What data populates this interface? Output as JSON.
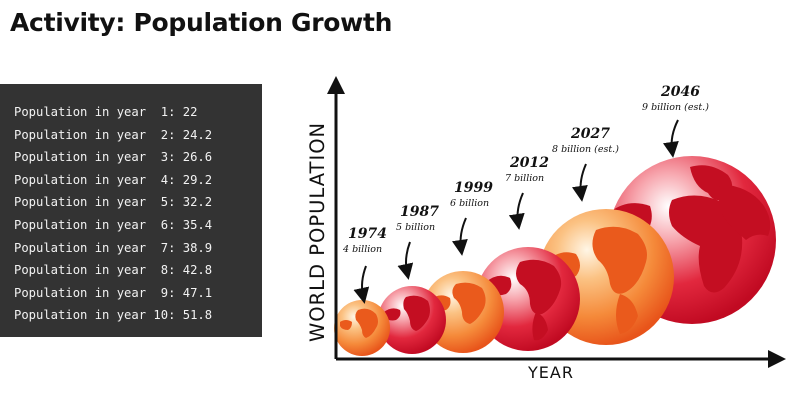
{
  "page": {
    "title": "Activity: Population Growth"
  },
  "console": {
    "lines": [
      "Population in year  1: 22",
      "Population in year  2: 24.2",
      "Population in year  3: 26.6",
      "Population in year  4: 29.2",
      "Population in year  5: 32.2",
      "Population in year  6: 35.4",
      "Population in year  7: 38.9",
      "Population in year  8: 42.8",
      "Population in year  9: 47.1",
      "Population in year 10: 51.8"
    ]
  },
  "infographic": {
    "y_axis_label": "WORLD POPULATION",
    "x_axis_label": "YEAR",
    "milestones": [
      {
        "year": "1974",
        "population": "4 billion"
      },
      {
        "year": "1987",
        "population": "5 billion"
      },
      {
        "year": "1999",
        "population": "6 billion"
      },
      {
        "year": "2012",
        "population": "7 billion"
      },
      {
        "year": "2027",
        "population": "8 billion (est.)"
      },
      {
        "year": "2046",
        "population": "9 billion (est.)"
      }
    ],
    "colors": {
      "globe_red": "#d0102a",
      "globe_orange": "#f26a22",
      "continent_red": "#c40e22",
      "continent_orange": "#ea5a1c",
      "axis": "#111111"
    }
  }
}
